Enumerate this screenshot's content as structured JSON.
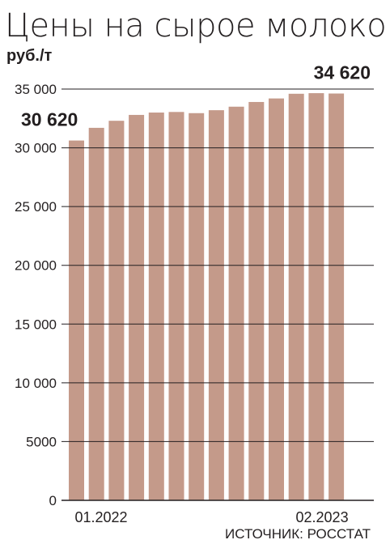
{
  "chart_data": {
    "type": "bar",
    "title": "Цены на сырое молоко",
    "ylabel": "руб./т",
    "ylim": [
      0,
      35000
    ],
    "yticks": [
      0,
      5000,
      10000,
      15000,
      20000,
      25000,
      30000,
      35000
    ],
    "ytick_labels": [
      "0",
      "5000",
      "10 000",
      "15 000",
      "20 000",
      "25 000",
      "30 000",
      "35 000"
    ],
    "x_tick_labels": [
      "01.2022",
      "02.2023"
    ],
    "values": [
      30620,
      31700,
      32300,
      32800,
      33000,
      33050,
      32950,
      33200,
      33500,
      33900,
      34200,
      34600,
      34650,
      34620
    ],
    "data_labels": [
      {
        "index": 0,
        "text": "30 620"
      },
      {
        "index": 13,
        "text": "34 620"
      }
    ],
    "source": "ИСТОЧНИК: РОССТАТ",
    "grid": true,
    "colors": {
      "bar": "#c49a8a",
      "grid": "#231f20",
      "text": "#231f20"
    }
  }
}
